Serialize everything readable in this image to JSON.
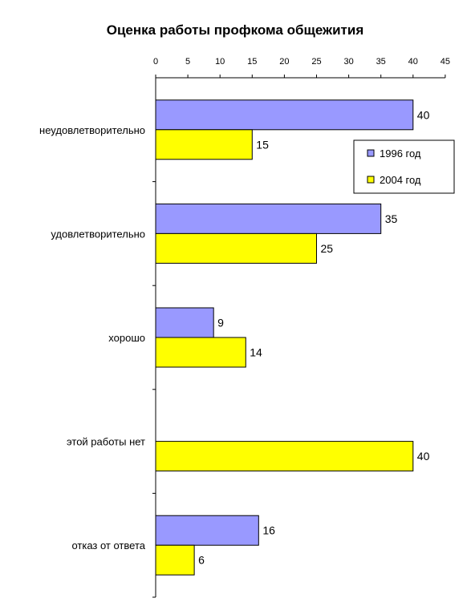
{
  "chart_data": {
    "type": "bar",
    "orientation": "horizontal",
    "title": "Оценка работы профкома общежития",
    "categories": [
      "неудовлетворительно",
      "удовлетворительно",
      "хорошо",
      "этой работы нет",
      "отказ от ответа"
    ],
    "series": [
      {
        "name": "1996 год",
        "values": [
          40,
          35,
          9,
          0,
          16
        ],
        "labels": [
          "40",
          "35",
          "9",
          "",
          "16"
        ],
        "color": "#9999ff"
      },
      {
        "name": "2004 год",
        "values": [
          15,
          25,
          14,
          40,
          6
        ],
        "labels": [
          "15",
          "25",
          "14",
          "40",
          "6"
        ],
        "color": "#ffff00"
      }
    ],
    "xlim": [
      0,
      45
    ],
    "xticks": [
      "0",
      "5",
      "10",
      "15",
      "20",
      "25",
      "30",
      "35",
      "40",
      "45"
    ],
    "x_axis_position": "top",
    "grid": false,
    "legend_position": "right"
  }
}
